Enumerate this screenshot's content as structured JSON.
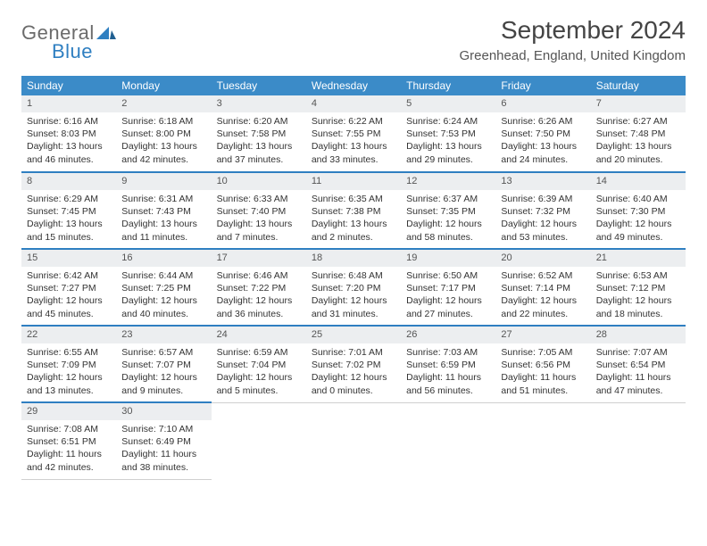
{
  "logo": {
    "text_general": "General",
    "text_blue": "Blue"
  },
  "title": "September 2024",
  "location": "Greenhead, England, United Kingdom",
  "colors": {
    "header_bg": "#3b8bc8",
    "accent": "#2f7fc1",
    "daynum_bg": "#eceef0"
  },
  "weekdays": [
    "Sunday",
    "Monday",
    "Tuesday",
    "Wednesday",
    "Thursday",
    "Friday",
    "Saturday"
  ],
  "weeks": [
    [
      {
        "n": "1",
        "sr": "6:16 AM",
        "ss": "8:03 PM",
        "dl": "13 hours and 46 minutes."
      },
      {
        "n": "2",
        "sr": "6:18 AM",
        "ss": "8:00 PM",
        "dl": "13 hours and 42 minutes."
      },
      {
        "n": "3",
        "sr": "6:20 AM",
        "ss": "7:58 PM",
        "dl": "13 hours and 37 minutes."
      },
      {
        "n": "4",
        "sr": "6:22 AM",
        "ss": "7:55 PM",
        "dl": "13 hours and 33 minutes."
      },
      {
        "n": "5",
        "sr": "6:24 AM",
        "ss": "7:53 PM",
        "dl": "13 hours and 29 minutes."
      },
      {
        "n": "6",
        "sr": "6:26 AM",
        "ss": "7:50 PM",
        "dl": "13 hours and 24 minutes."
      },
      {
        "n": "7",
        "sr": "6:27 AM",
        "ss": "7:48 PM",
        "dl": "13 hours and 20 minutes."
      }
    ],
    [
      {
        "n": "8",
        "sr": "6:29 AM",
        "ss": "7:45 PM",
        "dl": "13 hours and 15 minutes."
      },
      {
        "n": "9",
        "sr": "6:31 AM",
        "ss": "7:43 PM",
        "dl": "13 hours and 11 minutes."
      },
      {
        "n": "10",
        "sr": "6:33 AM",
        "ss": "7:40 PM",
        "dl": "13 hours and 7 minutes."
      },
      {
        "n": "11",
        "sr": "6:35 AM",
        "ss": "7:38 PM",
        "dl": "13 hours and 2 minutes."
      },
      {
        "n": "12",
        "sr": "6:37 AM",
        "ss": "7:35 PM",
        "dl": "12 hours and 58 minutes."
      },
      {
        "n": "13",
        "sr": "6:39 AM",
        "ss": "7:32 PM",
        "dl": "12 hours and 53 minutes."
      },
      {
        "n": "14",
        "sr": "6:40 AM",
        "ss": "7:30 PM",
        "dl": "12 hours and 49 minutes."
      }
    ],
    [
      {
        "n": "15",
        "sr": "6:42 AM",
        "ss": "7:27 PM",
        "dl": "12 hours and 45 minutes."
      },
      {
        "n": "16",
        "sr": "6:44 AM",
        "ss": "7:25 PM",
        "dl": "12 hours and 40 minutes."
      },
      {
        "n": "17",
        "sr": "6:46 AM",
        "ss": "7:22 PM",
        "dl": "12 hours and 36 minutes."
      },
      {
        "n": "18",
        "sr": "6:48 AM",
        "ss": "7:20 PM",
        "dl": "12 hours and 31 minutes."
      },
      {
        "n": "19",
        "sr": "6:50 AM",
        "ss": "7:17 PM",
        "dl": "12 hours and 27 minutes."
      },
      {
        "n": "20",
        "sr": "6:52 AM",
        "ss": "7:14 PM",
        "dl": "12 hours and 22 minutes."
      },
      {
        "n": "21",
        "sr": "6:53 AM",
        "ss": "7:12 PM",
        "dl": "12 hours and 18 minutes."
      }
    ],
    [
      {
        "n": "22",
        "sr": "6:55 AM",
        "ss": "7:09 PM",
        "dl": "12 hours and 13 minutes."
      },
      {
        "n": "23",
        "sr": "6:57 AM",
        "ss": "7:07 PM",
        "dl": "12 hours and 9 minutes."
      },
      {
        "n": "24",
        "sr": "6:59 AM",
        "ss": "7:04 PM",
        "dl": "12 hours and 5 minutes."
      },
      {
        "n": "25",
        "sr": "7:01 AM",
        "ss": "7:02 PM",
        "dl": "12 hours and 0 minutes."
      },
      {
        "n": "26",
        "sr": "7:03 AM",
        "ss": "6:59 PM",
        "dl": "11 hours and 56 minutes."
      },
      {
        "n": "27",
        "sr": "7:05 AM",
        "ss": "6:56 PM",
        "dl": "11 hours and 51 minutes."
      },
      {
        "n": "28",
        "sr": "7:07 AM",
        "ss": "6:54 PM",
        "dl": "11 hours and 47 minutes."
      }
    ],
    [
      {
        "n": "29",
        "sr": "7:08 AM",
        "ss": "6:51 PM",
        "dl": "11 hours and 42 minutes."
      },
      {
        "n": "30",
        "sr": "7:10 AM",
        "ss": "6:49 PM",
        "dl": "11 hours and 38 minutes."
      },
      null,
      null,
      null,
      null,
      null
    ]
  ],
  "labels": {
    "sunrise": "Sunrise:",
    "sunset": "Sunset:",
    "daylight": "Daylight:"
  }
}
